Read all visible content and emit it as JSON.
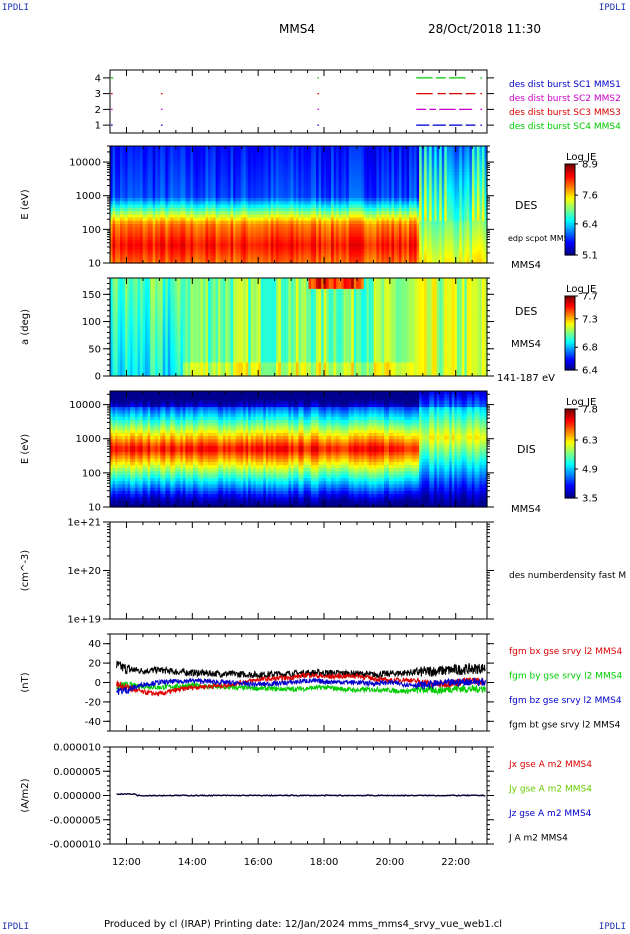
{
  "corner_labels": {
    "top_left": "IPDLI",
    "top_right": "IPDLI",
    "bottom_left": "IPDLI",
    "bottom_right": "IPDLI"
  },
  "header": {
    "spacecraft": "MMS4",
    "datetime": "28/Oct/2018 11:30"
  },
  "footer": {
    "text": "Produced by cl (IRAP)   Printing date: 12/Jan/2024   mms_mms4_srvy_vue_web1.cl"
  },
  "colors": {
    "blue": "#0000cc",
    "magenta": "#cc00cc",
    "red": "#dd0000",
    "green": "#00cc00",
    "black": "#000000",
    "colormap": [
      "#00008f",
      "#0000ff",
      "#0080ff",
      "#00ffff",
      "#80ff80",
      "#ffff00",
      "#ff8000",
      "#ff0000",
      "#800000"
    ]
  },
  "chart_data": [
    {
      "type": "scatter",
      "panel": "burst",
      "x_ticks": [
        "12:00",
        "14:00",
        "16:00",
        "18:00",
        "20:00",
        "22:00"
      ],
      "y_ticks": [
        "1",
        "2",
        "3",
        "4"
      ],
      "ylim": [
        0.5,
        4.5
      ],
      "series": [
        {
          "name": "des dist burst SC1 MMS1",
          "level": 1,
          "color": "#0000cc",
          "segments": [
            [
              11.53,
              11.58
            ],
            [
              13.05,
              13.08
            ],
            [
              17.8,
              17.82
            ],
            [
              20.8,
              21.2
            ],
            [
              21.3,
              21.7
            ],
            [
              21.8,
              22.2
            ],
            [
              22.3,
              22.6
            ],
            [
              22.75,
              22.8
            ]
          ]
        },
        {
          "name": "des dist burst SC2 MMS2",
          "level": 2,
          "color": "#cc00cc",
          "segments": [
            [
              11.53,
              11.58
            ],
            [
              13.05,
              13.08
            ],
            [
              17.8,
              17.82
            ],
            [
              20.8,
              21.1
            ],
            [
              21.2,
              21.4
            ],
            [
              21.5,
              22.0
            ],
            [
              22.1,
              22.5
            ],
            [
              22.75,
              22.8
            ]
          ]
        },
        {
          "name": "des dist burst SC3 MMS3",
          "level": 3,
          "color": "#dd0000",
          "segments": [
            [
              11.53,
              11.58
            ],
            [
              13.05,
              13.08
            ],
            [
              17.8,
              17.82
            ],
            [
              20.8,
              21.3
            ],
            [
              21.45,
              21.7
            ],
            [
              21.8,
              22.2
            ],
            [
              22.3,
              22.6
            ],
            [
              22.75,
              22.8
            ]
          ]
        },
        {
          "name": "des dist burst SC4 MMS4",
          "level": 4,
          "color": "#00cc00",
          "segments": [
            [
              11.53,
              11.6
            ],
            [
              17.8,
              17.82
            ],
            [
              20.8,
              21.3
            ],
            [
              21.4,
              21.7
            ],
            [
              21.8,
              22.3
            ],
            [
              22.75,
              22.8
            ]
          ]
        }
      ]
    },
    {
      "type": "heatmap",
      "panel": "des_energy",
      "ylabel": "E (eV)",
      "y_scale": "log",
      "ylim": [
        10,
        30000
      ],
      "y_ticks": [
        "10",
        "100",
        "1000",
        "10000"
      ],
      "label": "DES",
      "overlay": "edp scpot MMS4",
      "sublabel": "MMS4",
      "colorbar": {
        "title": "Log JE",
        "min": 5.1,
        "max": 8.9,
        "ticks": [
          "8.9",
          "7.6",
          "6.4",
          "5.1"
        ]
      }
    },
    {
      "type": "heatmap",
      "panel": "des_pitch",
      "ylabel": "a (deg)",
      "ylim": [
        0,
        180
      ],
      "y_ticks": [
        "0",
        "50",
        "100",
        "150"
      ],
      "label": "DES",
      "sublabel": "MMS4",
      "energy_range": "141-187 eV",
      "colorbar": {
        "title": "Log JE",
        "min": 6.4,
        "max": 7.7,
        "ticks": [
          "7.7",
          "7.3",
          "6.8",
          "6.4"
        ]
      }
    },
    {
      "type": "heatmap",
      "panel": "dis_energy",
      "ylabel": "E (eV)",
      "y_scale": "log",
      "ylim": [
        10,
        25000
      ],
      "y_ticks": [
        "10",
        "100",
        "1000",
        "10000"
      ],
      "label": "DIS",
      "sublabel": "MMS4",
      "colorbar": {
        "title": "Log JE",
        "min": 3.5,
        "max": 7.8,
        "ticks": [
          "7.8",
          "6.3",
          "4.9",
          "3.5"
        ]
      }
    },
    {
      "type": "line",
      "panel": "density",
      "ylabel": "(cm^-3)",
      "y_scale": "log",
      "ylim": [
        1e+19,
        1e+21
      ],
      "y_ticks": [
        "1e+19",
        "1e+20",
        "1e+21"
      ],
      "series": [
        {
          "name": "des numberdensity fast M",
          "color": "#000000",
          "values": []
        }
      ]
    },
    {
      "type": "line",
      "panel": "fgm",
      "ylabel": "(nT)",
      "ylim": [
        -50,
        50
      ],
      "y_ticks": [
        "-40",
        "-20",
        "0",
        "20",
        "40"
      ],
      "series": [
        {
          "name": "fgm bx gse srvy l2 MMS4",
          "color": "#dd0000",
          "t": [
            11.5,
            12.0,
            12.5,
            13.0,
            13.5,
            14.0,
            15.0,
            16.0,
            17.0,
            17.5,
            18.0,
            19.0,
            19.5,
            20.0,
            20.5,
            21.0,
            21.5,
            22.0,
            22.5,
            22.9
          ],
          "values": [
            0,
            -5,
            -10,
            -12,
            -8,
            -5,
            -3,
            3,
            5,
            8,
            6,
            7,
            4,
            2,
            3,
            0,
            -2,
            0,
            2,
            1
          ]
        },
        {
          "name": "fgm by gse srvy l2 MMS4",
          "color": "#00cc00",
          "t": [
            11.5,
            12.0,
            12.5,
            13.0,
            13.5,
            14.0,
            15.0,
            16.0,
            17.0,
            17.5,
            18.0,
            19.0,
            19.5,
            20.0,
            20.5,
            21.0,
            21.5,
            22.0,
            22.5,
            22.9
          ],
          "values": [
            -5,
            -3,
            -4,
            -5,
            -4,
            -3,
            -5,
            -6,
            -7,
            -6,
            -5,
            -8,
            -7,
            -8,
            -9,
            -7,
            -8,
            -6,
            -7,
            -6
          ]
        },
        {
          "name": "fgm bz gse srvy l2 MMS4",
          "color": "#0000cc",
          "t": [
            11.5,
            12.0,
            12.5,
            13.0,
            13.5,
            14.0,
            15.0,
            16.0,
            17.0,
            17.5,
            18.0,
            19.0,
            19.5,
            20.0,
            20.5,
            21.0,
            21.5,
            22.0,
            22.5,
            22.9
          ],
          "values": [
            -10,
            -8,
            -2,
            0,
            1,
            2,
            0,
            -2,
            0,
            2,
            1,
            0,
            -1,
            0,
            -2,
            -3,
            -1,
            0,
            1,
            0
          ]
        },
        {
          "name": "fgm bt gse srvy l2 MMS4",
          "color": "#000000",
          "t": [
            11.5,
            12.0,
            12.5,
            13.0,
            13.5,
            14.0,
            15.0,
            16.0,
            17.0,
            17.5,
            18.0,
            19.0,
            19.5,
            20.0,
            20.5,
            21.0,
            21.5,
            22.0,
            22.5,
            22.9
          ],
          "values": [
            20,
            14,
            12,
            13,
            11,
            10,
            9,
            8,
            9,
            10,
            10,
            9,
            8,
            9,
            10,
            11,
            12,
            13,
            14,
            15
          ]
        }
      ]
    },
    {
      "type": "line",
      "panel": "current",
      "ylabel": "(A/m2)",
      "ylim": [
        -1e-05,
        1e-05
      ],
      "y_ticks": [
        "-0.000010",
        "-0.000005",
        "0.000000",
        "0.000005",
        "0.000010"
      ],
      "x_ticks": [
        "12:00",
        "14:00",
        "16:00",
        "18:00",
        "20:00",
        "22:00"
      ],
      "series": [
        {
          "name": "Jx gse A m2 MMS4",
          "color": "#dd0000",
          "values": []
        },
        {
          "name": "Jy gse A m2 MMS4",
          "color": "#66cc00",
          "values": []
        },
        {
          "name": "Jz gse A m2 MMS4",
          "color": "#0000cc",
          "values": []
        },
        {
          "name": "J A m2 MMS4",
          "color": "#000000",
          "values": []
        }
      ]
    }
  ]
}
